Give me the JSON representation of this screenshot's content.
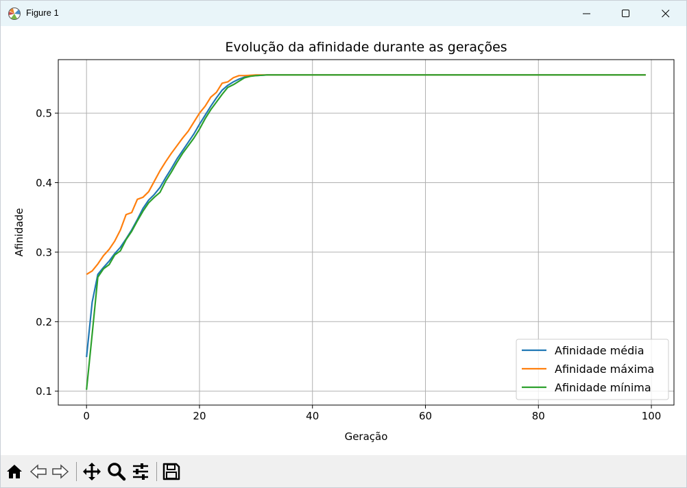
{
  "window": {
    "title": "Figure 1",
    "icons": {
      "app": "matplotlib-logo-icon",
      "minimize": "minimize-icon",
      "maximize": "maximize-icon",
      "close": "close-icon"
    }
  },
  "toolbar": {
    "buttons": [
      "home-icon",
      "back-icon",
      "forward-icon",
      "pan-icon",
      "zoom-icon",
      "configure-subplots-icon",
      "save-icon"
    ]
  },
  "chart_data": {
    "type": "line",
    "title": "Evolução da afinidade durante as gerações",
    "xlabel": "Geração",
    "ylabel": "Afinidade",
    "xlim": [
      -5,
      104
    ],
    "ylim": [
      0.08,
      0.577
    ],
    "xticks": [
      0,
      20,
      40,
      60,
      80,
      100
    ],
    "xtick_labels": [
      "0",
      "20",
      "40",
      "60",
      "80",
      "100"
    ],
    "yticks": [
      0.1,
      0.2,
      0.3,
      0.4,
      0.5
    ],
    "ytick_labels": [
      "0.1",
      "0.2",
      "0.3",
      "0.4",
      "0.5"
    ],
    "grid": true,
    "legend_position": "lower right",
    "series": [
      {
        "name": "Afinidade média",
        "color": "#1f77b4",
        "x": [
          0,
          1,
          2,
          3,
          4,
          5,
          6,
          7,
          8,
          9,
          10,
          11,
          12,
          13,
          14,
          15,
          16,
          17,
          18,
          19,
          20,
          21,
          22,
          23,
          24,
          25,
          26,
          27,
          28,
          29,
          30,
          31,
          32,
          33,
          34,
          35,
          99
        ],
        "y": [
          0.149,
          0.228,
          0.268,
          0.278,
          0.287,
          0.298,
          0.307,
          0.319,
          0.332,
          0.347,
          0.363,
          0.375,
          0.383,
          0.393,
          0.407,
          0.42,
          0.434,
          0.446,
          0.458,
          0.47,
          0.484,
          0.497,
          0.51,
          0.522,
          0.533,
          0.54,
          0.545,
          0.549,
          0.552,
          0.5535,
          0.554,
          0.5545,
          0.555,
          0.555,
          0.555,
          0.555,
          0.555
        ]
      },
      {
        "name": "Afinidade máxima",
        "color": "#ff7f0e",
        "x": [
          0,
          1,
          2,
          3,
          4,
          5,
          6,
          7,
          8,
          9,
          10,
          11,
          12,
          13,
          14,
          15,
          16,
          17,
          18,
          19,
          20,
          21,
          22,
          23,
          24,
          25,
          26,
          27,
          28,
          29,
          30,
          31,
          32,
          33,
          34,
          35,
          99
        ],
        "y": [
          0.268,
          0.273,
          0.283,
          0.295,
          0.304,
          0.316,
          0.332,
          0.354,
          0.357,
          0.376,
          0.379,
          0.387,
          0.402,
          0.417,
          0.43,
          0.442,
          0.453,
          0.464,
          0.474,
          0.487,
          0.5,
          0.51,
          0.523,
          0.53,
          0.543,
          0.545,
          0.551,
          0.554,
          0.554,
          0.5545,
          0.555,
          0.555,
          0.555,
          0.555,
          0.555,
          0.555,
          0.555
        ]
      },
      {
        "name": "Afinidade mínima",
        "color": "#2ca02c",
        "x": [
          0,
          1,
          2,
          3,
          4,
          5,
          6,
          7,
          8,
          9,
          10,
          11,
          12,
          13,
          14,
          15,
          16,
          17,
          18,
          19,
          20,
          21,
          22,
          23,
          24,
          25,
          26,
          27,
          28,
          29,
          30,
          31,
          32,
          33,
          34,
          35,
          99
        ],
        "y": [
          0.102,
          0.182,
          0.264,
          0.276,
          0.282,
          0.296,
          0.302,
          0.318,
          0.33,
          0.345,
          0.359,
          0.371,
          0.379,
          0.386,
          0.402,
          0.415,
          0.429,
          0.442,
          0.453,
          0.464,
          0.477,
          0.492,
          0.505,
          0.516,
          0.527,
          0.537,
          0.541,
          0.546,
          0.551,
          0.553,
          0.554,
          0.5545,
          0.555,
          0.555,
          0.555,
          0.555,
          0.555
        ]
      }
    ]
  }
}
